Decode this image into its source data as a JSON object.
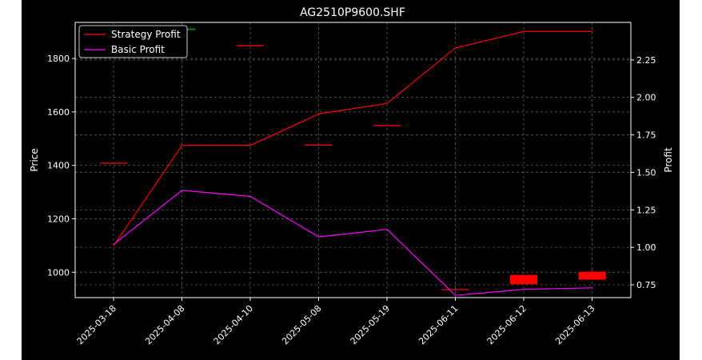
{
  "chart_data": {
    "type": "candlestick+line",
    "title": "AG2510P9600.SHF",
    "xlabel": "",
    "ylabel_left": "Price",
    "ylabel_right": "Profit",
    "categories": [
      "2025-03-18",
      "2025-04-08",
      "2025-04-10",
      "2025-05-08",
      "2025-05-19",
      "2025-06-11",
      "2025-06-12",
      "2025-06-13"
    ],
    "left_axis": {
      "ylim": [
        905,
        1935
      ],
      "ticks": [
        1000,
        1200,
        1400,
        1600,
        1800
      ]
    },
    "right_axis": {
      "ylim": [
        0.665,
        2.5
      ],
      "ticks": [
        0.75,
        1.0,
        1.25,
        1.5,
        1.75,
        2.0,
        2.25
      ]
    },
    "candles": [
      {
        "x": "2025-03-18",
        "open": 1408,
        "high": 1408,
        "low": 1408,
        "close": 1408,
        "color": "#ff0000"
      },
      {
        "x": "2025-04-08",
        "open": 1906,
        "high": 1912,
        "low": 1906,
        "close": 1912,
        "color": "#008000"
      },
      {
        "x": "2025-04-10",
        "open": 1848,
        "high": 1848,
        "low": 1848,
        "close": 1848,
        "color": "#ff0000"
      },
      {
        "x": "2025-05-08",
        "open": 1476,
        "high": 1476,
        "low": 1476,
        "close": 1476,
        "color": "#ff0000"
      },
      {
        "x": "2025-05-19",
        "open": 1549,
        "high": 1549,
        "low": 1549,
        "close": 1549,
        "color": "#ff0000"
      },
      {
        "x": "2025-06-11",
        "open": 935,
        "high": 950,
        "low": 930,
        "close": 935,
        "color": "#ff0000"
      },
      {
        "x": "2025-06-12",
        "open": 990,
        "high": 990,
        "low": 955,
        "close": 955,
        "color": "#ff0000"
      },
      {
        "x": "2025-06-13",
        "open": 1002,
        "high": 1008,
        "low": 972,
        "close": 972,
        "color": "#ff0000"
      }
    ],
    "series": [
      {
        "name": "Strategy Profit",
        "color": "#ff0000",
        "values": [
          1.01,
          1.68,
          1.68,
          1.89,
          1.96,
          2.33,
          2.44,
          2.44
        ]
      },
      {
        "name": "Basic Profit",
        "color": "#ff00ff",
        "values": [
          1.02,
          1.38,
          1.34,
          1.07,
          1.12,
          0.68,
          0.72,
          0.73
        ]
      }
    ],
    "grid": true,
    "legend_position": "top-left"
  }
}
